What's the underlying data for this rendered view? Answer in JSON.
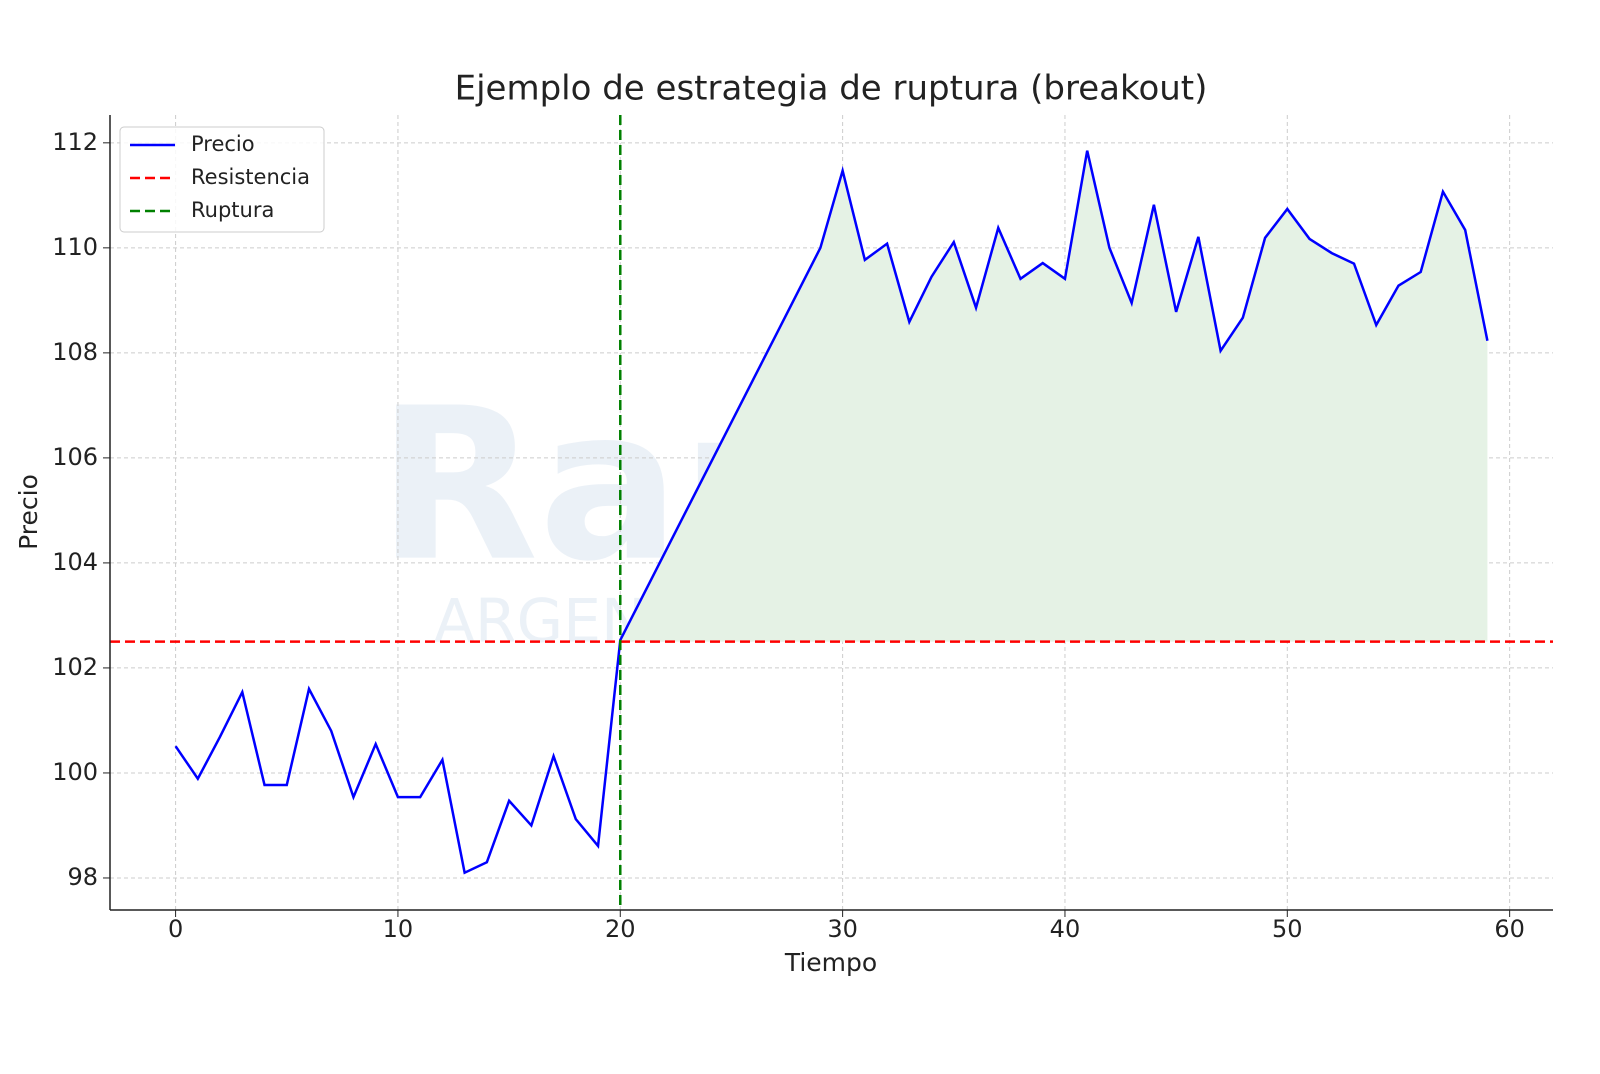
{
  "chart_data": {
    "type": "line",
    "title": "Ejemplo de estrategia de ruptura (breakout)",
    "xlabel": "Tiempo",
    "ylabel": "Precio",
    "watermark": [
      "Rankia",
      "ARGENTINA"
    ],
    "x": [
      0,
      1,
      2,
      3,
      4,
      5,
      6,
      7,
      8,
      9,
      10,
      11,
      12,
      13,
      14,
      15,
      16,
      17,
      18,
      19,
      20,
      21,
      22,
      23,
      24,
      25,
      26,
      27,
      28,
      29,
      30,
      31,
      32,
      33,
      34,
      35,
      36,
      37,
      38,
      39,
      40,
      41,
      42,
      43,
      44,
      45,
      46,
      47,
      48,
      49,
      50,
      51,
      52,
      53,
      54,
      55,
      56,
      57,
      58,
      59
    ],
    "series": [
      {
        "name": "Precio",
        "color": "#0000ff",
        "values": [
          100.51,
          99.89,
          100.69,
          101.54,
          99.77,
          99.77,
          101.6,
          100.8,
          99.54,
          100.55,
          99.54,
          99.54,
          100.25,
          98.1,
          98.3,
          99.47,
          99.0,
          100.32,
          99.12,
          98.61,
          102.53,
          103.36,
          104.19,
          105.02,
          105.85,
          106.68,
          107.51,
          108.34,
          109.17,
          110.0,
          111.47,
          109.77,
          110.08,
          108.59,
          109.45,
          110.11,
          108.86,
          110.38,
          109.41,
          109.71,
          109.41,
          111.85,
          110.0,
          108.95,
          110.82,
          108.78,
          110.21,
          108.04,
          108.67,
          110.19,
          110.74,
          110.17,
          109.9,
          109.7,
          108.53,
          109.28,
          109.54,
          111.07,
          110.34,
          108.23
        ]
      }
    ],
    "resistance": {
      "name": "Resistencia",
      "value": 102.5,
      "color": "#ff0000"
    },
    "breakout": {
      "name": "Ruptura",
      "x": 20,
      "color": "#008000"
    },
    "fill_color": "#e5f2e5",
    "xlim": [
      -2.95,
      61.95
    ],
    "xticks": [
      0,
      10,
      20,
      30,
      40,
      50,
      60
    ],
    "ylim": [
      97.39,
      112.53
    ],
    "yticks": [
      98,
      100,
      102,
      104,
      106,
      108,
      110,
      112
    ],
    "grid": true,
    "legend": "upper left"
  }
}
